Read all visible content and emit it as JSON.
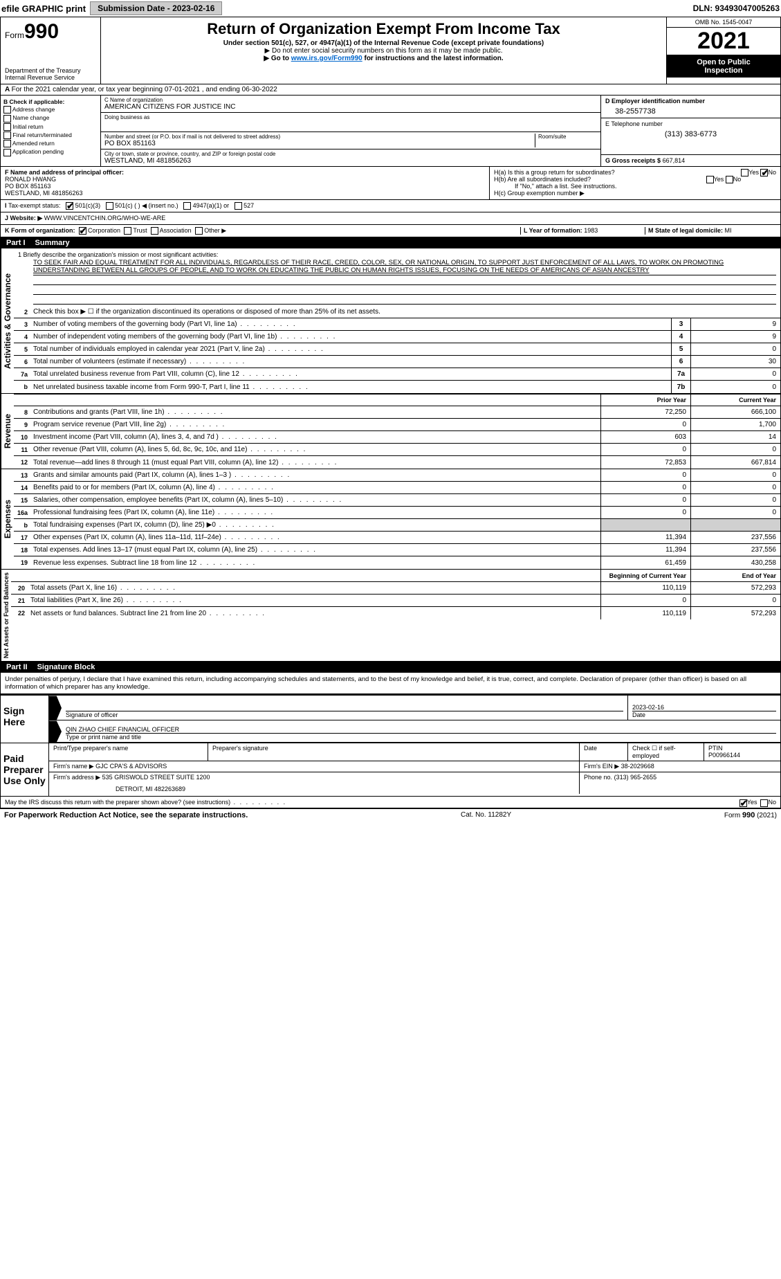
{
  "topbar": {
    "efile": "efile GRAPHIC print",
    "submission_label": "Submission Date - 2023-02-16",
    "dln": "DLN: 93493047005263"
  },
  "header": {
    "form_word": "Form",
    "form_num": "990",
    "dept1": "Department of the Treasury",
    "dept2": "Internal Revenue Service",
    "title": "Return of Organization Exempt From Income Tax",
    "sub1": "Under section 501(c), 527, or 4947(a)(1) of the Internal Revenue Code (except private foundations)",
    "sub2": "▶ Do not enter social security numbers on this form as it may be made public.",
    "sub3_pre": "▶ Go to ",
    "sub3_link": "www.irs.gov/Form990",
    "sub3_post": " for instructions and the latest information.",
    "omb": "OMB No. 1545-0047",
    "year": "2021",
    "insp1": "Open to Public",
    "insp2": "Inspection"
  },
  "row_a": "For the 2021 calendar year, or tax year beginning 07-01-2021    , and ending 06-30-2022",
  "col_b": {
    "hdr": "B Check if applicable:",
    "items": [
      "Address change",
      "Name change",
      "Initial return",
      "Final return/terminated",
      "Amended return",
      "Application pending"
    ]
  },
  "col_c": {
    "c_label": "C Name of organization",
    "c_val": "AMERICAN CITIZENS FOR JUSTICE INC",
    "dba_label": "Doing business as",
    "dba_val": "",
    "addr_label": "Number and street (or P.O. box if mail is not delivered to street address)",
    "room_label": "Room/suite",
    "addr_val": "PO BOX 851163",
    "city_label": "City or town, state or province, country, and ZIP or foreign postal code",
    "city_val": "WESTLAND, MI  481856263"
  },
  "col_d": {
    "d_label": "D Employer identification number",
    "ein": "38-2557738",
    "e_label": "E Telephone number",
    "phone": "(313) 383-6773",
    "g_label": "G Gross receipts $",
    "g_val": "667,814"
  },
  "block3": {
    "f_label": "F Name and address of principal officer:",
    "f_name": "RONALD HWANG",
    "f_addr1": "PO BOX 851163",
    "f_addr2": "WESTLAND, MI  481856263",
    "h_a": "H(a)  Is this a group return for subordinates?",
    "h_b": "H(b)  Are all subordinates included?",
    "h_note": "If \"No,\" attach a list. See instructions.",
    "h_c": "H(c)  Group exemption number ▶",
    "yes": "Yes",
    "no": "No"
  },
  "tax_status": {
    "i_label": "Tax-exempt status:",
    "opts": [
      "501(c)(3)",
      "501(c) (   ) ◀ (insert no.)",
      "4947(a)(1) or",
      "527"
    ]
  },
  "website": {
    "j_label": "Website: ▶",
    "val": "WWW.VINCENTCHIN.ORG/WHO-WE-ARE"
  },
  "row_k": {
    "k_label": "K Form of organization:",
    "opts": [
      "Corporation",
      "Trust",
      "Association",
      "Other ▶"
    ],
    "l_label": "L Year of formation:",
    "l_val": "1983",
    "m_label": "M State of legal domicile:",
    "m_val": "MI"
  },
  "part1": {
    "title_num": "Part I",
    "title": "Summary",
    "vtab_gov": "Activities & Governance",
    "vtab_rev": "Revenue",
    "vtab_exp": "Expenses",
    "vtab_net": "Net Assets or Fund Balances",
    "line1_label": "1  Briefly describe the organization's mission or most significant activities:",
    "mission": "TO SEEK FAIR AND EQUAL TREATMENT FOR ALL INDIVIDUALS, REGARDLESS OF THEIR RACE, CREED, COLOR, SEX, OR NATIONAL ORIGIN, TO SUPPORT JUST ENFORCEMENT OF ALL LAWS, TO WORK ON PROMOTING UNDERSTANDING BETWEEN ALL GROUPS OF PEOPLE, AND TO WORK ON EDUCATING THE PUBLIC ON HUMAN RIGHTS ISSUES, FOCUSING ON THE NEEDS OF AMERICANS OF ASIAN ANCESTRY",
    "line2": "Check this box ▶ ☐ if the organization discontinued its operations or disposed of more than 25% of its net assets.",
    "lines_gov": [
      {
        "n": "3",
        "t": "Number of voting members of the governing body (Part VI, line 1a)",
        "box": "3",
        "v": "9"
      },
      {
        "n": "4",
        "t": "Number of independent voting members of the governing body (Part VI, line 1b)",
        "box": "4",
        "v": "9"
      },
      {
        "n": "5",
        "t": "Total number of individuals employed in calendar year 2021 (Part V, line 2a)",
        "box": "5",
        "v": "0"
      },
      {
        "n": "6",
        "t": "Total number of volunteers (estimate if necessary)",
        "box": "6",
        "v": "30"
      },
      {
        "n": "7a",
        "t": "Total unrelated business revenue from Part VIII, column (C), line 12",
        "box": "7a",
        "v": "0"
      },
      {
        "n": "b",
        "t": "Net unrelated business taxable income from Form 990-T, Part I, line 11",
        "box": "7b",
        "v": "0"
      }
    ],
    "col_prior": "Prior Year",
    "col_current": "Current Year",
    "lines_rev": [
      {
        "n": "8",
        "t": "Contributions and grants (Part VIII, line 1h)",
        "p": "72,250",
        "c": "666,100"
      },
      {
        "n": "9",
        "t": "Program service revenue (Part VIII, line 2g)",
        "p": "0",
        "c": "1,700"
      },
      {
        "n": "10",
        "t": "Investment income (Part VIII, column (A), lines 3, 4, and 7d )",
        "p": "603",
        "c": "14"
      },
      {
        "n": "11",
        "t": "Other revenue (Part VIII, column (A), lines 5, 6d, 8c, 9c, 10c, and 11e)",
        "p": "0",
        "c": "0"
      },
      {
        "n": "12",
        "t": "Total revenue—add lines 8 through 11 (must equal Part VIII, column (A), line 12)",
        "p": "72,853",
        "c": "667,814"
      }
    ],
    "lines_exp": [
      {
        "n": "13",
        "t": "Grants and similar amounts paid (Part IX, column (A), lines 1–3 )",
        "p": "0",
        "c": "0"
      },
      {
        "n": "14",
        "t": "Benefits paid to or for members (Part IX, column (A), line 4)",
        "p": "0",
        "c": "0"
      },
      {
        "n": "15",
        "t": "Salaries, other compensation, employee benefits (Part IX, column (A), lines 5–10)",
        "p": "0",
        "c": "0"
      },
      {
        "n": "16a",
        "t": "Professional fundraising fees (Part IX, column (A), line 11e)",
        "p": "0",
        "c": "0"
      },
      {
        "n": "b",
        "t": "Total fundraising expenses (Part IX, column (D), line 25) ▶0",
        "p": "",
        "c": "",
        "shade": true
      },
      {
        "n": "17",
        "t": "Other expenses (Part IX, column (A), lines 11a–11d, 11f–24e)",
        "p": "11,394",
        "c": "237,556"
      },
      {
        "n": "18",
        "t": "Total expenses. Add lines 13–17 (must equal Part IX, column (A), line 25)",
        "p": "11,394",
        "c": "237,556"
      },
      {
        "n": "19",
        "t": "Revenue less expenses. Subtract line 18 from line 12",
        "p": "61,459",
        "c": "430,258"
      }
    ],
    "col_beg": "Beginning of Current Year",
    "col_end": "End of Year",
    "lines_net": [
      {
        "n": "20",
        "t": "Total assets (Part X, line 16)",
        "p": "110,119",
        "c": "572,293"
      },
      {
        "n": "21",
        "t": "Total liabilities (Part X, line 26)",
        "p": "0",
        "c": "0"
      },
      {
        "n": "22",
        "t": "Net assets or fund balances. Subtract line 21 from line 20",
        "p": "110,119",
        "c": "572,293"
      }
    ]
  },
  "part2": {
    "title_num": "Part II",
    "title": "Signature Block",
    "decl": "Under penalties of perjury, I declare that I have examined this return, including accompanying schedules and statements, and to the best of my knowledge and belief, it is true, correct, and complete. Declaration of preparer (other than officer) is based on all information of which preparer has any knowledge."
  },
  "sign": {
    "label": "Sign Here",
    "sig_label": "Signature of officer",
    "date_label": "Date",
    "date_val": "2023-02-16",
    "name_val": "QIN ZHAO  CHIEF FINANCIAL OFFICER",
    "name_label": "Type or print name and title"
  },
  "paid": {
    "label": "Paid Preparer Use Only",
    "r1": {
      "c1": "Print/Type preparer's name",
      "c2": "Preparer's signature",
      "c3": "Date",
      "c4": "Check ☐ if self-employed",
      "c5l": "PTIN",
      "c5v": "P00966144"
    },
    "r2": {
      "c1": "Firm's name    ▶",
      "c1v": "GJC CPA'S & ADVISORS",
      "c2": "Firm's EIN ▶",
      "c2v": "38-2029668"
    },
    "r3": {
      "c1": "Firm's address ▶",
      "c1v": "535 GRISWOLD STREET SUITE 1200",
      "c2": "Phone no.",
      "c2v": "(313) 965-2655"
    },
    "r3b": "DETROIT, MI  482263689"
  },
  "may_irs": {
    "q": "May the IRS discuss this return with the preparer shown above? (see instructions)",
    "yes": "Yes",
    "no": "No"
  },
  "footer": {
    "left": "For Paperwork Reduction Act Notice, see the separate instructions.",
    "mid": "Cat. No. 11282Y",
    "right_pre": "Form ",
    "right_b": "990",
    "right_post": " (2021)"
  }
}
